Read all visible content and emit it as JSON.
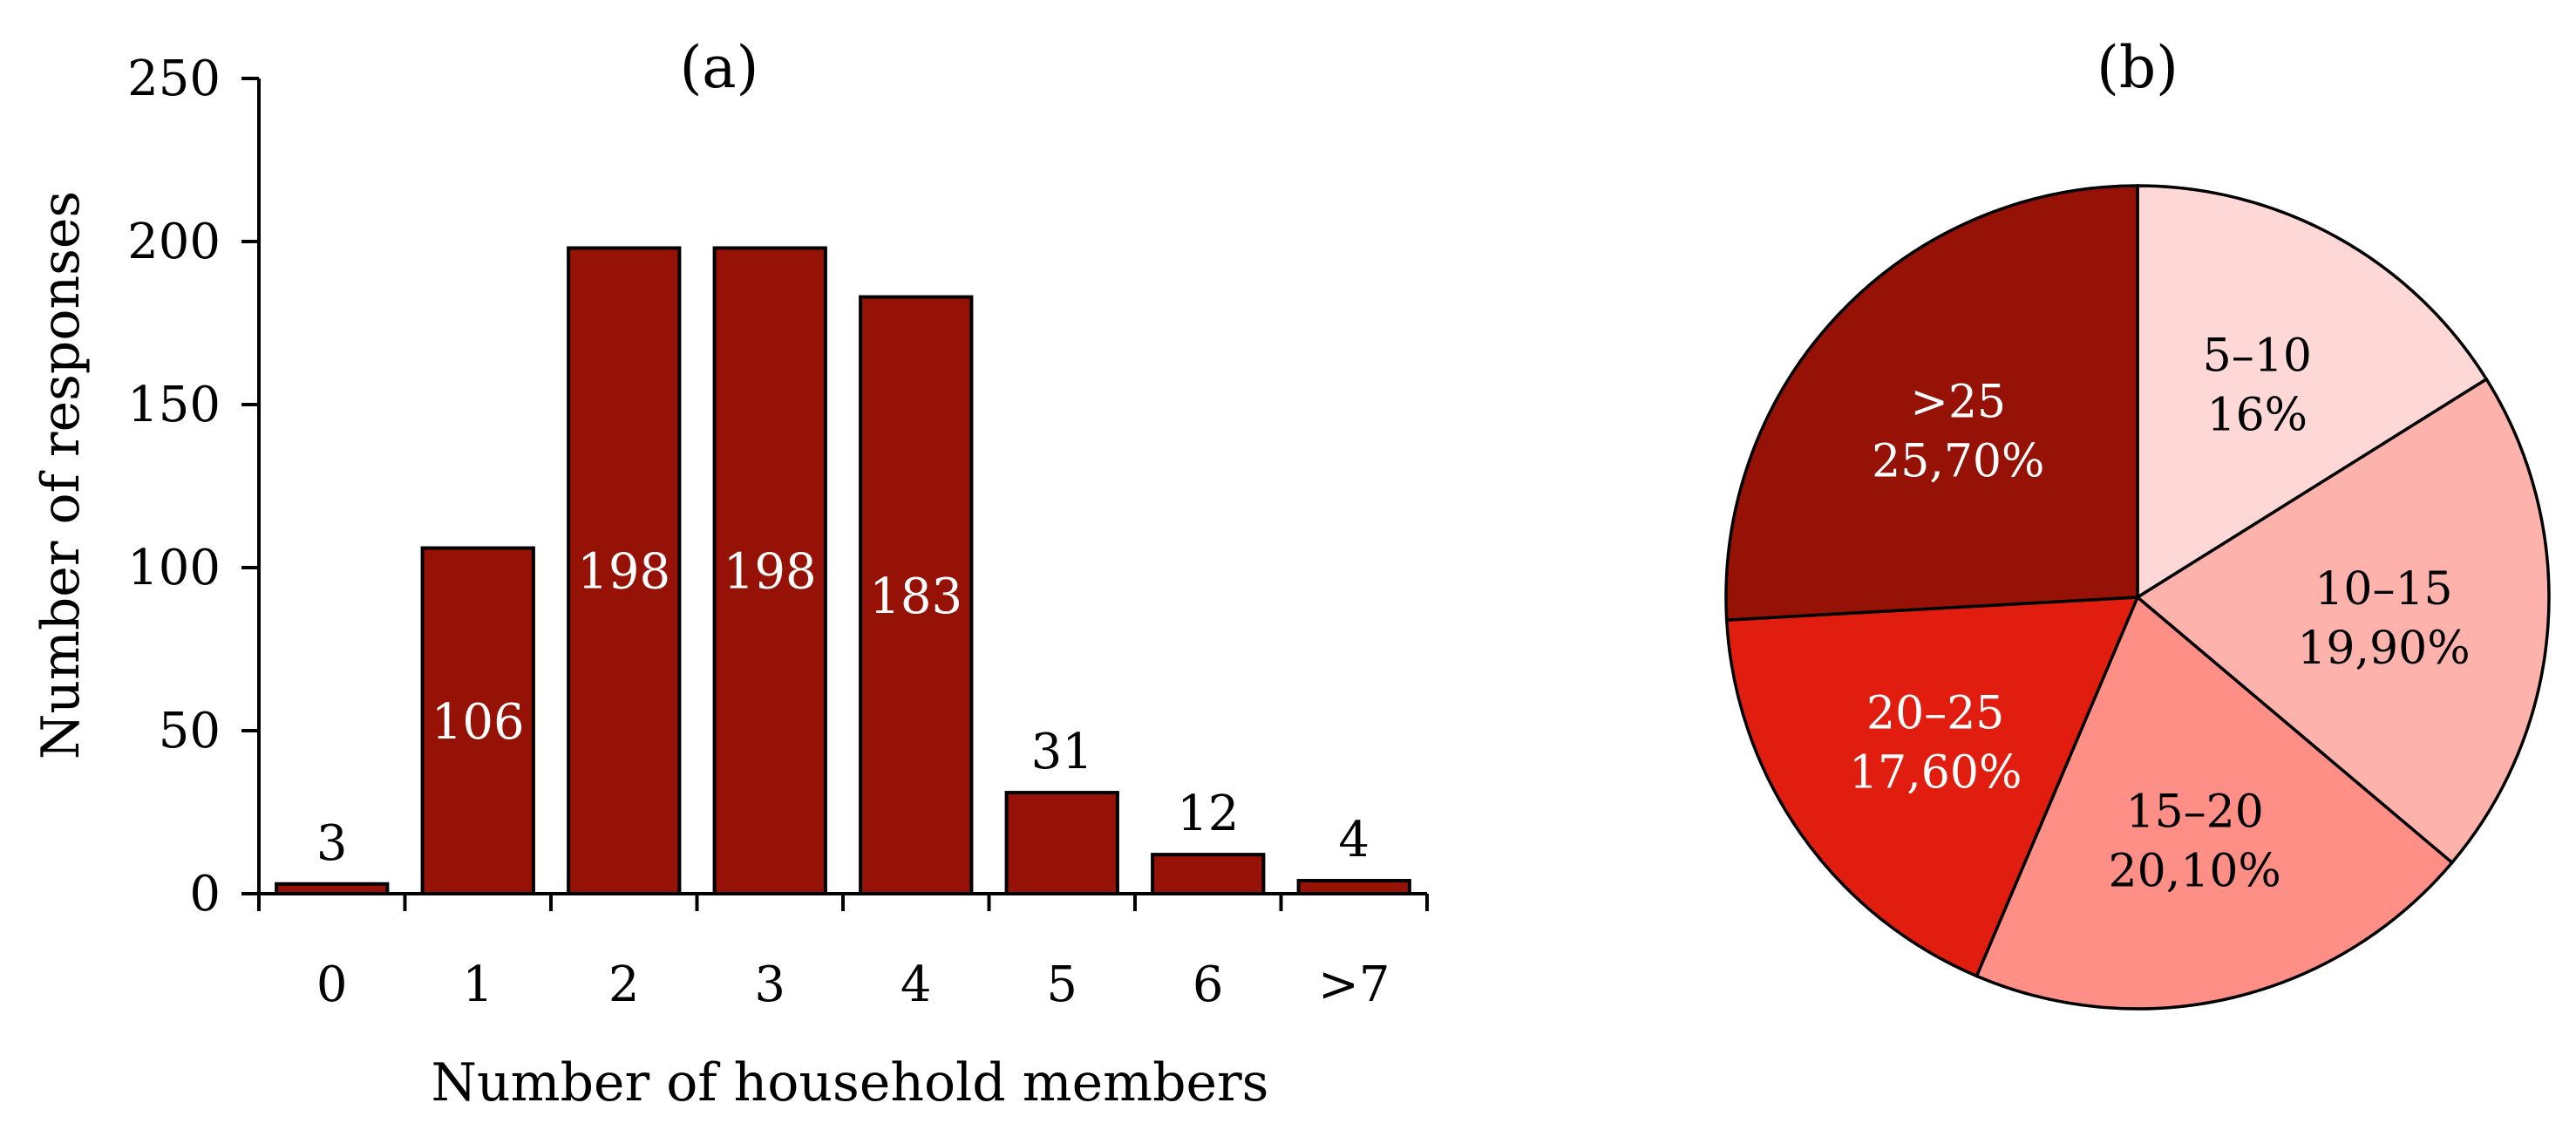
{
  "chart_data": [
    {
      "type": "bar",
      "panel_label": "(a)",
      "categories": [
        "0",
        "1",
        "2",
        "3",
        "4",
        "5",
        "6",
        ">7"
      ],
      "values": [
        3,
        106,
        198,
        198,
        183,
        31,
        12,
        4
      ],
      "data_labels": [
        "3",
        "106",
        "198",
        "198",
        "183",
        "31",
        "12",
        "4"
      ],
      "xlabel": "Number of household members",
      "ylabel": "Number of responses",
      "ylim": [
        0,
        250
      ],
      "yticks": [
        "0",
        "50",
        "100",
        "150",
        "200",
        "250"
      ],
      "ytick_values": [
        0,
        50,
        100,
        150,
        200,
        250
      ],
      "grid": false,
      "bar_color": "#961106"
    },
    {
      "type": "pie",
      "panel_label": "(b)",
      "slices": [
        {
          "label": "5–10",
          "value_label": "16%",
          "value": 16.0,
          "color": "#fed8d6",
          "text_color": "#000000"
        },
        {
          "label": "10–15",
          "value_label": "19,90%",
          "value": 19.9,
          "color": "#fdb3ac",
          "text_color": "#000000"
        },
        {
          "label": "15–20",
          "value_label": "20,10%",
          "value": 20.1,
          "color": "#fd8f86",
          "text_color": "#000000"
        },
        {
          "label": "20–25",
          "value_label": "17,60%",
          "value": 17.6,
          "color": "#e11d0f",
          "text_color": "#ffffff"
        },
        {
          "label": ">25",
          "value_label": "25,70%",
          "value": 25.7,
          "color": "#961106",
          "text_color": "#ffffff"
        }
      ],
      "start_angle_deg": 0,
      "direction": "clockwise",
      "legend": "none"
    }
  ]
}
